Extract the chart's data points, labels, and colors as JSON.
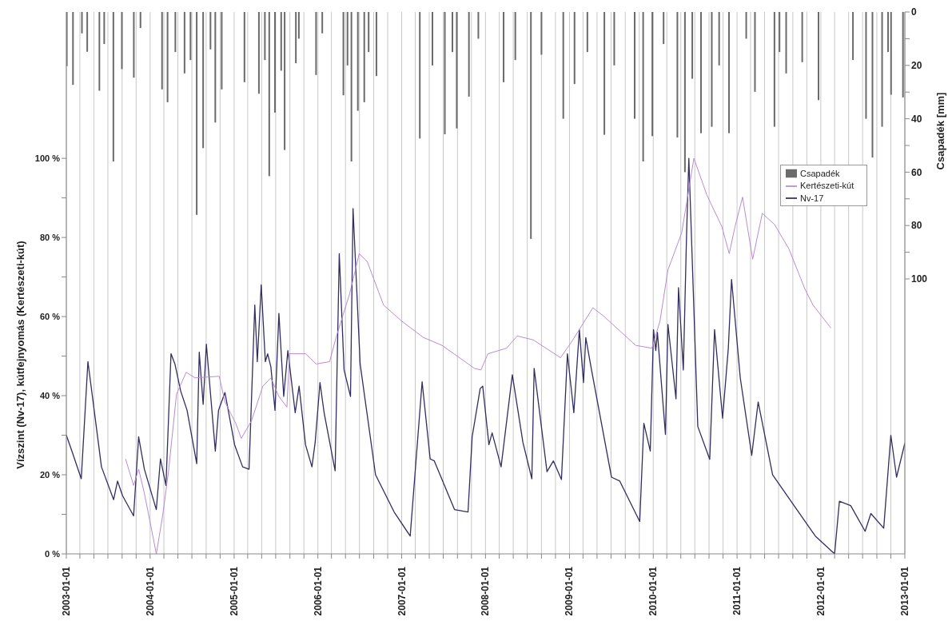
{
  "chart_data": {
    "type": "line",
    "ylabel": "Vízszint (Nv-17), kútfejnyomás (Kertészeti-kút)",
    "y2label": "Csapadék [mm]",
    "xlim": [
      "2003-01-01",
      "2013-01-01"
    ],
    "xticks": [
      "2003-01-01",
      {
        "value": "2003-03-01",
        "label": null
      },
      {
        "value": "2003-05-01",
        "label": null
      },
      {
        "value": "2003-07-01",
        "label": null
      },
      {
        "value": "2003-09-01",
        "label": null
      },
      {
        "value": "2003-11-01",
        "label": null
      },
      "2004-01-01",
      {
        "value": "2004-03-01",
        "label": null
      },
      {
        "value": "2004-05-01",
        "label": null
      },
      {
        "value": "2004-07-01",
        "label": null
      },
      {
        "value": "2004-09-01",
        "label": null
      },
      {
        "value": "2004-11-01",
        "label": null
      },
      "2005-01-01",
      {
        "value": "2005-03-01",
        "label": null
      },
      {
        "value": "2005-05-01",
        "label": null
      },
      {
        "value": "2005-07-01",
        "label": null
      },
      {
        "value": "2005-09-01",
        "label": null
      },
      {
        "value": "2005-11-01",
        "label": null
      },
      "2006-01-01",
      {
        "value": "2006-03-01",
        "label": null
      },
      {
        "value": "2006-05-01",
        "label": null
      },
      {
        "value": "2006-07-01",
        "label": null
      },
      {
        "value": "2006-09-01",
        "label": null
      },
      {
        "value": "2006-11-01",
        "label": null
      },
      "2007-01-01",
      {
        "value": "2007-03-01",
        "label": null
      },
      {
        "value": "2007-05-01",
        "label": null
      },
      {
        "value": "2007-07-01",
        "label": null
      },
      {
        "value": "2007-09-01",
        "label": null
      },
      {
        "value": "2007-11-01",
        "label": null
      },
      "2008-01-01",
      {
        "value": "2008-03-01",
        "label": null
      },
      {
        "value": "2008-05-01",
        "label": null
      },
      {
        "value": "2008-07-01",
        "label": null
      },
      {
        "value": "2008-09-01",
        "label": null
      },
      {
        "value": "2008-11-01",
        "label": null
      },
      "2009-01-01",
      {
        "value": "2009-03-01",
        "label": null
      },
      {
        "value": "2009-05-01",
        "label": null
      },
      {
        "value": "2009-07-01",
        "label": null
      },
      {
        "value": "2009-09-01",
        "label": null
      },
      {
        "value": "2009-11-01",
        "label": null
      },
      "2010-01-01",
      {
        "value": "2010-03-01",
        "label": null
      },
      {
        "value": "2010-05-01",
        "label": null
      },
      {
        "value": "2010-07-01",
        "label": null
      },
      {
        "value": "2010-09-01",
        "label": null
      },
      {
        "value": "2010-11-01",
        "label": null
      },
      "2011-01-01",
      {
        "value": "2011-03-01",
        "label": null
      },
      {
        "value": "2011-05-01",
        "label": null
      },
      {
        "value": "2011-07-01",
        "label": null
      },
      {
        "value": "2011-09-01",
        "label": null
      },
      {
        "value": "2011-11-01",
        "label": null
      },
      "2012-01-01",
      {
        "value": "2012-03-01",
        "label": null
      },
      {
        "value": "2012-05-01",
        "label": null
      },
      {
        "value": "2012-07-01",
        "label": null
      },
      {
        "value": "2012-09-01",
        "label": null
      },
      {
        "value": "2012-11-01",
        "label": null
      },
      "2013-01-01"
    ],
    "ylim": [
      0,
      137
    ],
    "yticks": [
      {
        "value": 0,
        "label": "0 %"
      },
      {
        "value": 10,
        "label": null
      },
      {
        "value": 20,
        "label": "20 %"
      },
      {
        "value": 30,
        "label": null
      },
      {
        "value": 40,
        "label": "40 %"
      },
      {
        "value": 50,
        "label": null
      },
      {
        "value": 60,
        "label": "60 %"
      },
      {
        "value": 70,
        "label": null
      },
      {
        "value": 80,
        "label": "80 %"
      },
      {
        "value": 90,
        "label": null
      },
      {
        "value": 100,
        "label": "100 %"
      }
    ],
    "y2lim": [
      203,
      0
    ],
    "y2ticks": [
      0,
      {
        "value": 10,
        "label": null
      },
      20,
      {
        "value": 30,
        "label": null
      },
      40,
      {
        "value": 50,
        "label": null
      },
      60,
      {
        "value": 70,
        "label": null
      },
      80,
      {
        "value": 90,
        "label": null
      },
      100
    ],
    "grid": "x",
    "legend": "top right",
    "series": [
      {
        "name": "Nv-17",
        "color": "#322e60",
        "x": [
          "2003-01-01",
          "2003-01-25",
          "2003-03-07",
          "2003-04-05",
          "2003-06-03",
          "2003-07-26",
          "2003-08-12",
          "2003-09-03",
          "2003-10-21",
          "2003-11-12",
          "2003-12-07",
          "2004-01-28",
          "2004-02-15",
          "2004-03-10",
          "2004-04-01",
          "2004-04-18",
          "2004-05-13",
          "2004-06-10",
          "2004-07-22",
          "2004-08-02",
          "2004-08-19",
          "2004-09-02",
          "2004-10-11",
          "2004-10-25",
          "2004-11-22",
          "2005-01-03",
          "2005-02-07",
          "2005-03-07",
          "2005-04-01",
          "2005-04-12",
          "2005-04-29",
          "2005-05-17",
          "2005-05-27",
          "2005-06-10",
          "2005-06-28",
          "2005-07-15",
          "2005-08-05",
          "2005-08-23",
          "2005-09-24",
          "2005-10-11",
          "2005-11-08",
          "2005-12-06",
          "2005-12-20",
          "2006-01-10",
          "2006-01-28",
          "2006-03-17",
          "2006-04-04",
          "2006-04-25",
          "2006-05-23",
          "2006-06-03",
          "2006-07-04",
          "2006-09-09",
          "2006-11-29",
          "2007-02-07",
          "2007-03-31",
          "2007-05-05",
          "2007-05-23",
          "2007-08-19",
          "2007-10-17",
          "2007-11-04",
          "2007-12-09",
          "2007-12-20",
          "2008-01-16",
          "2008-01-30",
          "2008-03-09",
          "2008-04-27",
          "2008-06-12",
          "2008-07-21",
          "2008-07-31",
          "2008-09-25",
          "2008-10-23",
          "2008-11-27",
          "2008-12-23",
          "2009-01-20",
          "2009-02-13",
          "2009-03-03",
          "2009-03-13",
          "2009-04-07",
          "2009-07-03",
          "2009-08-08",
          "2009-11-03",
          "2009-11-21",
          "2009-12-19",
          "2010-01-02",
          "2010-01-12",
          "2010-01-19",
          "2010-02-23",
          "2010-03-06",
          "2010-04-10",
          "2010-04-21",
          "2010-05-12",
          "2010-05-26",
          "2010-06-05",
          "2010-07-14",
          "2010-09-04",
          "2010-09-25",
          "2010-10-30",
          "2010-11-24",
          "2010-12-08",
          "2011-01-15",
          "2011-03-06",
          "2011-04-03",
          "2011-06-05",
          "2011-12-08",
          "2012-03-01",
          "2012-03-22",
          "2012-05-10",
          "2012-07-12",
          "2012-08-06",
          "2012-10-01",
          "2012-11-01",
          "2012-11-26",
          "2013-01-01"
        ],
        "values": [
          30,
          26,
          19,
          48.6,
          22,
          13.7,
          18.4,
          14.7,
          9.6,
          29.6,
          21.4,
          11.2,
          24,
          17.3,
          50.6,
          48,
          41.2,
          36.3,
          22.8,
          51,
          37.8,
          53,
          26,
          36.3,
          40.8,
          27.6,
          22,
          21.4,
          62.9,
          48.6,
          68,
          48.6,
          50.6,
          47.3,
          36.3,
          60.8,
          39.8,
          51.4,
          35.7,
          42.4,
          27.6,
          22,
          28.2,
          43.3,
          35.7,
          21,
          75.9,
          46.5,
          39.8,
          87.3,
          48,
          20,
          10.6,
          4.5,
          43.5,
          24,
          23.5,
          11.2,
          10.6,
          29.6,
          41.8,
          42.4,
          27.6,
          30.6,
          22,
          45.3,
          28.2,
          19,
          46.9,
          20.8,
          23.5,
          18.8,
          50.6,
          35.7,
          56.7,
          43.3,
          54.7,
          46.5,
          19.4,
          18.4,
          8.2,
          33,
          26,
          56.7,
          51.4,
          56,
          30.2,
          58,
          39.2,
          67.3,
          46.5,
          80.6,
          100,
          32.2,
          23.9,
          56.7,
          34.3,
          52,
          69.4,
          44.5,
          24.9,
          38.4,
          20,
          4.5,
          0,
          13.3,
          12.2,
          5.7,
          10.2,
          6.5,
          30,
          19.4,
          28
        ]
      },
      {
        "name": "Csapadék",
        "type": "bar",
        "axis": "y2",
        "color": "#6b6b6b",
        "x": [
          "2003-01-03",
          "2003-01-30",
          "2003-03-10",
          "2003-04-02",
          "2003-05-25",
          "2003-06-15",
          "2003-07-25",
          "2003-08-31",
          "2003-10-22",
          "2003-11-20",
          "2004-02-22",
          "2004-03-17",
          "2004-04-20",
          "2004-05-30",
          "2004-06-25",
          "2004-07-22",
          "2004-08-19",
          "2004-09-20",
          "2004-10-11",
          "2004-11-08",
          "2005-02-15",
          "2005-04-19",
          "2005-05-15",
          "2005-06-03",
          "2005-06-28",
          "2005-07-25",
          "2005-08-09",
          "2005-09-27",
          "2005-10-10",
          "2005-12-24",
          "2006-01-20",
          "2006-04-22",
          "2006-05-10",
          "2006-05-27",
          "2006-06-24",
          "2006-07-22",
          "2006-08-10",
          "2006-09-13",
          "2007-03-21",
          "2007-05-15",
          "2007-07-08",
          "2007-08-10",
          "2007-08-29",
          "2007-10-21",
          "2007-12-01",
          "2008-03-20",
          "2008-05-10",
          "2008-07-17",
          "2008-09-01",
          "2008-12-05",
          "2009-01-23",
          "2009-03-20",
          "2009-06-02",
          "2009-07-15",
          "2009-10-12",
          "2009-11-18",
          "2009-12-28",
          "2010-02-15",
          "2010-04-16",
          "2010-05-19",
          "2010-06-20",
          "2010-07-28",
          "2010-09-13",
          "2010-10-15",
          "2010-11-27",
          "2011-02-10",
          "2011-03-20",
          "2011-06-13",
          "2011-07-05",
          "2011-08-03",
          "2011-10-12",
          "2011-12-22",
          "2012-05-20",
          "2012-07-16",
          "2012-08-13",
          "2012-09-24",
          "2012-10-20",
          "2012-11-02",
          "2012-12-24"
        ],
        "values": [
          20.3,
          27.3,
          8,
          14.9,
          29.5,
          12,
          56,
          21.4,
          24.6,
          6,
          29,
          33.8,
          15,
          23,
          18,
          76,
          51,
          14,
          41.4,
          29,
          26.3,
          30.6,
          18,
          61.5,
          37.7,
          22,
          51.7,
          19.2,
          10,
          23.6,
          8,
          31.2,
          20,
          56,
          37,
          33.8,
          15,
          24,
          47.4,
          20,
          45.8,
          15,
          43.6,
          31.7,
          10,
          26.3,
          18,
          85,
          16,
          40,
          27,
          15,
          46,
          20,
          40,
          56,
          46.5,
          12,
          47,
          60,
          25,
          45.4,
          43,
          20,
          45.4,
          10,
          29.9,
          43,
          15,
          23,
          18.8,
          33,
          18,
          40,
          54.5,
          43,
          15,
          31,
          32
        ]
      },
      {
        "name": "Kertészeti-kút",
        "color": "#b98bd2",
        "x": [
          "2003-09-16",
          "2003-10-21",
          "2003-11-12",
          "2003-12-07",
          "2004-01-04",
          "2004-01-28",
          "2004-02-25",
          "2004-03-21",
          "2004-04-25",
          "2004-06-06",
          "2004-07-15",
          "2004-10-28",
          "2004-11-22",
          "2005-01-08",
          "2005-02-01",
          "2005-03-18",
          "2005-05-06",
          "2005-06-10",
          "2005-07-15",
          "2005-08-19",
          "2005-08-30",
          "2005-11-08",
          "2005-12-24",
          "2006-02-21",
          "2006-03-21",
          "2006-05-19",
          "2006-06-30",
          "2006-08-04",
          "2006-10-14",
          "2007-01-02",
          "2007-04-06",
          "2007-06-26",
          "2007-11-14",
          "2007-12-12",
          "2008-01-12",
          "2008-04-02",
          "2008-05-18",
          "2008-07-27",
          "2008-11-23",
          "2009-01-09",
          "2009-04-13",
          "2009-05-28",
          "2009-10-17",
          "2009-12-26",
          "2010-01-30",
          "2010-03-06",
          "2010-05-05",
          "2010-06-27",
          "2010-08-22",
          "2010-10-27",
          "2010-11-28",
          "2010-12-23",
          "2011-01-25",
          "2011-03-10",
          "2011-04-21",
          "2011-06-13",
          "2011-08-15",
          "2011-10-24",
          "2011-11-28",
          "2012-02-14"
        ],
        "values": [
          24,
          17.3,
          21.4,
          15.3,
          7.1,
          0,
          9.8,
          20.8,
          40.4,
          45.9,
          44.5,
          44.9,
          38.4,
          33,
          29.2,
          33.7,
          42.4,
          44.5,
          39.8,
          37.1,
          50.6,
          50.6,
          48,
          48.6,
          54.7,
          65.7,
          75.9,
          73.9,
          62.9,
          58.8,
          54.7,
          52.7,
          46.9,
          46.5,
          50.6,
          52,
          55.1,
          54.1,
          49.6,
          53.5,
          62.2,
          60.2,
          52.7,
          52,
          58.8,
          71.8,
          81.2,
          100,
          90.8,
          82.7,
          75.9,
          82.7,
          90.2,
          74.5,
          86.1,
          83.3,
          77.1,
          66.9,
          62.9,
          57.1
        ]
      }
    ]
  }
}
